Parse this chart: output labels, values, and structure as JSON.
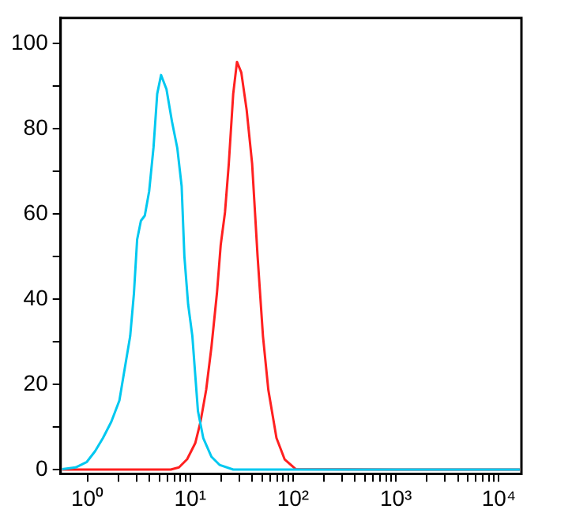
{
  "chart_data": {
    "type": "line",
    "log": "x",
    "marker": "none",
    "grid": false,
    "legend": false,
    "xlim": [
      0.55,
      16600
    ],
    "ylim": [
      -1,
      106
    ],
    "xticks": [
      {
        "value": 1,
        "label": "10⁰"
      },
      {
        "value": 2,
        "label": null
      },
      {
        "value": 3,
        "label": null
      },
      {
        "value": 4,
        "label": null
      },
      {
        "value": 5,
        "label": null
      },
      {
        "value": 6,
        "label": null
      },
      {
        "value": 7,
        "label": null
      },
      {
        "value": 8,
        "label": null
      },
      {
        "value": 9,
        "label": null
      },
      {
        "value": 10,
        "label": "10¹"
      },
      {
        "value": 20,
        "label": null
      },
      {
        "value": 30,
        "label": null
      },
      {
        "value": 40,
        "label": null
      },
      {
        "value": 50,
        "label": null
      },
      {
        "value": 60,
        "label": null
      },
      {
        "value": 70,
        "label": null
      },
      {
        "value": 80,
        "label": null
      },
      {
        "value": 90,
        "label": null
      },
      {
        "value": 100,
        "label": "10²"
      },
      {
        "value": 200,
        "label": null
      },
      {
        "value": 300,
        "label": null
      },
      {
        "value": 400,
        "label": null
      },
      {
        "value": 500,
        "label": null
      },
      {
        "value": 600,
        "label": null
      },
      {
        "value": 700,
        "label": null
      },
      {
        "value": 800,
        "label": null
      },
      {
        "value": 900,
        "label": null
      },
      {
        "value": 1000,
        "label": "10³"
      },
      {
        "value": 2000,
        "label": null
      },
      {
        "value": 3000,
        "label": null
      },
      {
        "value": 4000,
        "label": null
      },
      {
        "value": 5000,
        "label": null
      },
      {
        "value": 6000,
        "label": null
      },
      {
        "value": 7000,
        "label": null
      },
      {
        "value": 8000,
        "label": null
      },
      {
        "value": 9000,
        "label": null
      },
      {
        "value": 10000,
        "label": "10⁴"
      }
    ],
    "yticks": [
      0,
      {
        "value": 10,
        "label": null
      },
      20,
      {
        "value": 30,
        "label": null
      },
      40,
      {
        "value": 50,
        "label": null
      },
      60,
      {
        "value": 70,
        "label": null
      },
      80,
      {
        "value": 90,
        "label": null
      },
      100
    ],
    "series": [
      {
        "color": "#00c8f0",
        "x": [
          0.57,
          0.77,
          0.99,
          1.19,
          1.42,
          1.71,
          2.05,
          2.31,
          2.61,
          2.84,
          3.05,
          3.32,
          3.62,
          3.99,
          4.4,
          4.78,
          5.21,
          5.88,
          6.64,
          7.49,
          8.26,
          8.78,
          9.55,
          10.5,
          11.9,
          13.4,
          16.1,
          19.3,
          26.2,
          35.4,
          100,
          1000,
          16000
        ],
        "values": [
          0.1,
          0.5,
          1.8,
          4.3,
          7.4,
          11.2,
          16.2,
          23.7,
          31.3,
          41.4,
          54,
          58.4,
          59.6,
          65.3,
          75.6,
          88.2,
          92.6,
          89.3,
          81.8,
          75.5,
          66.5,
          50.1,
          38.8,
          31.3,
          13.7,
          7.4,
          3,
          1.1,
          0,
          0,
          0,
          0,
          0
        ]
      },
      {
        "color": "#ff2020",
        "x": [
          0.57,
          6.48,
          7.78,
          9.33,
          11.2,
          12.6,
          14.3,
          16.1,
          18.2,
          19.8,
          21.8,
          23.7,
          26.2,
          28.5,
          31.4,
          35.4,
          40,
          45.2,
          51,
          57.5,
          69,
          82.8,
          106,
          1000,
          16000
        ],
        "values": [
          0,
          0,
          0.5,
          2.4,
          6.2,
          11.2,
          18.7,
          28.8,
          41.4,
          52.7,
          60.4,
          71.6,
          88.2,
          95.7,
          93.2,
          84.4,
          71.8,
          50.1,
          31.3,
          18.7,
          7.4,
          2.4,
          0.1,
          0,
          0
        ]
      }
    ]
  }
}
